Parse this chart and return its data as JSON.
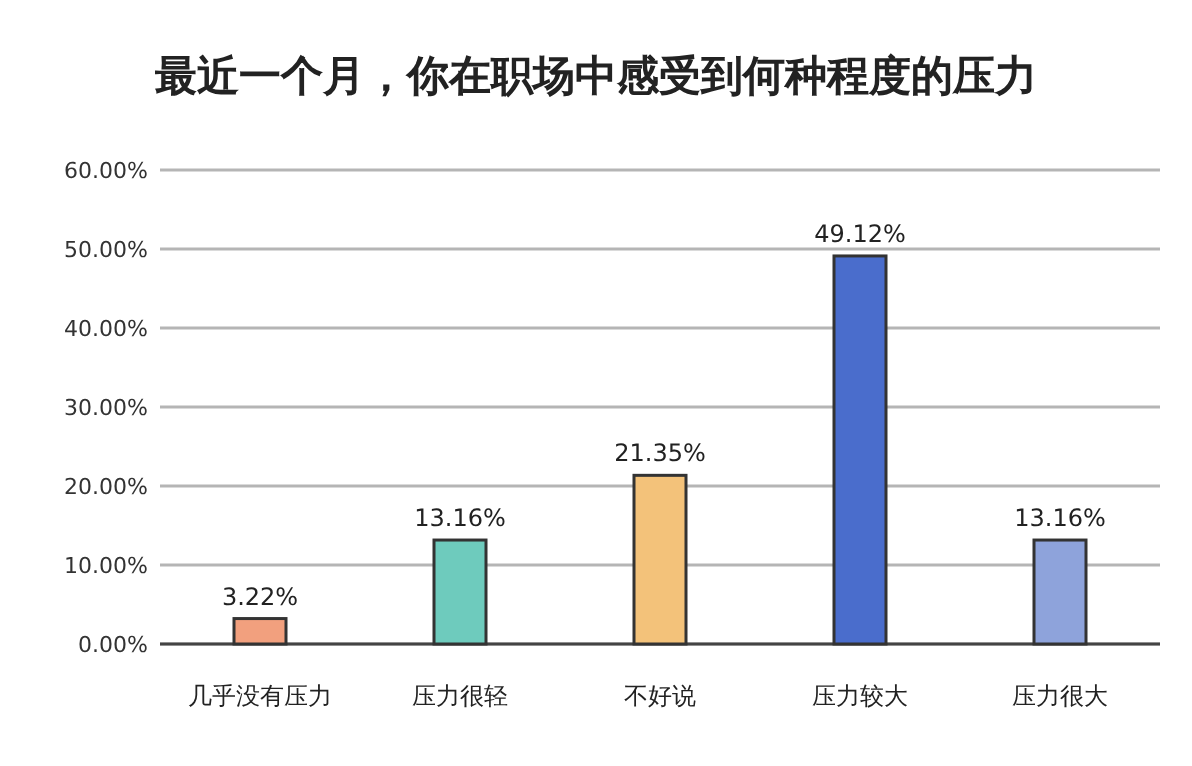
{
  "chart_data": {
    "type": "bar",
    "title": "最近一个月，你在职场中感受到何种程度的压力",
    "categories": [
      "几乎没有压力",
      "压力很轻",
      "不好说",
      "压力较大",
      "压力很大"
    ],
    "values": [
      3.22,
      13.16,
      21.35,
      49.12,
      13.16
    ],
    "colors": [
      "#f2a07e",
      "#6ecbbd",
      "#f3c27a",
      "#4a6dcc",
      "#8ea3db"
    ],
    "value_labels": [
      "3.22%",
      "13.16%",
      "21.35%",
      "49.12%",
      "13.16%"
    ],
    "ylim": [
      0,
      60
    ],
    "yticks": [
      {
        "value": 0,
        "label": "0.00%"
      },
      {
        "value": 10,
        "label": "10.00%"
      },
      {
        "value": 20,
        "label": "20.00%"
      },
      {
        "value": 30,
        "label": "30.00%"
      },
      {
        "value": 40,
        "label": "40.00%"
      },
      {
        "value": 50,
        "label": "50.00%"
      },
      {
        "value": 60,
        "label": "60.00%"
      }
    ],
    "grid": "y"
  }
}
